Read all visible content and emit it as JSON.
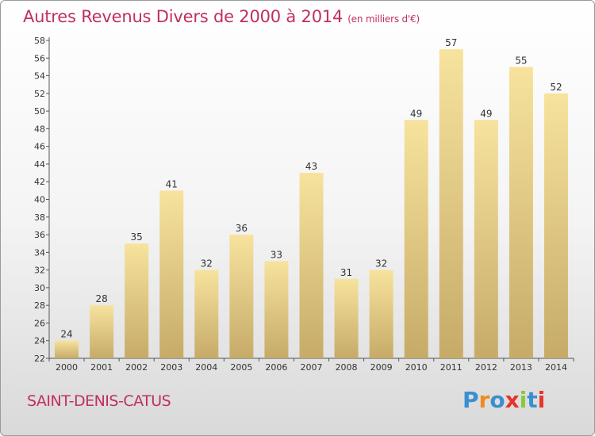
{
  "title": "Autres Revenus Divers de 2000 à 2014",
  "subtitle_unit": "(en milliers d'€)",
  "location": "SAINT-DENIS-CATUS",
  "logo_text": "Proxiti",
  "logo_colors": [
    "#3a8fd0",
    "#f08a1c",
    "#3a8fd0",
    "#e8332a",
    "#8cc63f",
    "#3a8fd0",
    "#e8332a"
  ],
  "colors": {
    "title": "#c0305a",
    "bar_light": "#f5e09a",
    "bar_dark": "#c8ad6a"
  },
  "chart_data": {
    "type": "bar",
    "categories": [
      "2000",
      "2001",
      "2002",
      "2003",
      "2004",
      "2005",
      "2006",
      "2007",
      "2008",
      "2009",
      "2010",
      "2011",
      "2012",
      "2013",
      "2014"
    ],
    "values": [
      24,
      28,
      35,
      41,
      32,
      36,
      33,
      43,
      31,
      32,
      49,
      57,
      49,
      55,
      52
    ],
    "ylim": [
      22,
      58
    ],
    "yticks": [
      22,
      24,
      26,
      28,
      30,
      32,
      34,
      36,
      38,
      40,
      42,
      44,
      46,
      48,
      50,
      52,
      54,
      56,
      58
    ],
    "grid": false,
    "xlabel": "",
    "ylabel": ""
  }
}
